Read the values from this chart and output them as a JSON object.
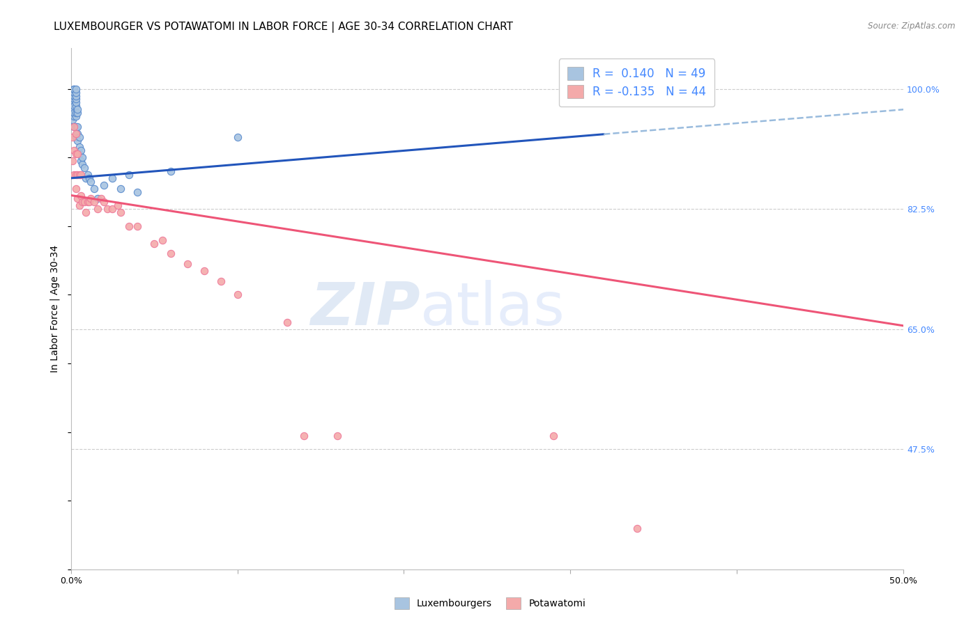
{
  "title": "LUXEMBOURGER VS POTAWATOMI IN LABOR FORCE | AGE 30-34 CORRELATION CHART",
  "source": "Source: ZipAtlas.com",
  "ylabel": "In Labor Force | Age 30-34",
  "xlim": [
    0.0,
    0.5
  ],
  "ylim": [
    0.3,
    1.06
  ],
  "xtick_pos": [
    0.0,
    0.1,
    0.2,
    0.3,
    0.4,
    0.5
  ],
  "xtick_labels": [
    "0.0%",
    "",
    "",
    "",
    "",
    "50.0%"
  ],
  "ytick_pos": [
    0.475,
    0.65,
    0.825,
    1.0
  ],
  "ytick_labels": [
    "47.5%",
    "65.0%",
    "82.5%",
    "100.0%"
  ],
  "watermark_zip": "ZIP",
  "watermark_atlas": "atlas",
  "blue_R": 0.14,
  "blue_N": 49,
  "pink_R": -0.135,
  "pink_N": 44,
  "blue_color": "#A8C4E0",
  "pink_color": "#F4AAAA",
  "blue_edge_color": "#5588CC",
  "pink_edge_color": "#EE7799",
  "blue_line_color": "#2255BB",
  "pink_line_color": "#EE5577",
  "dashed_line_color": "#99BBDD",
  "grid_color": "#CCCCCC",
  "bg_color": "#FFFFFF",
  "right_label_color": "#4488FF",
  "title_fontsize": 11,
  "axis_label_fontsize": 10,
  "tick_fontsize": 9,
  "legend_fontsize": 12,
  "blue_line_intercept": 0.87,
  "blue_line_slope": 0.2,
  "pink_line_intercept": 0.845,
  "pink_line_slope": -0.38,
  "blue_x": [
    0.001,
    0.001,
    0.001,
    0.001,
    0.002,
    0.002,
    0.002,
    0.002,
    0.002,
    0.002,
    0.002,
    0.002,
    0.002,
    0.003,
    0.003,
    0.003,
    0.003,
    0.003,
    0.003,
    0.003,
    0.003,
    0.003,
    0.003,
    0.004,
    0.004,
    0.004,
    0.004,
    0.004,
    0.005,
    0.005,
    0.005,
    0.006,
    0.006,
    0.007,
    0.007,
    0.008,
    0.009,
    0.01,
    0.011,
    0.012,
    0.014,
    0.016,
    0.02,
    0.025,
    0.03,
    0.035,
    0.04,
    0.06,
    0.1
  ],
  "blue_y": [
    0.955,
    0.97,
    0.98,
    0.99,
    0.945,
    0.96,
    0.965,
    0.975,
    0.985,
    0.99,
    0.995,
    1.0,
    1.0,
    0.93,
    0.945,
    0.96,
    0.965,
    0.975,
    0.98,
    0.985,
    0.99,
    0.995,
    1.0,
    0.925,
    0.935,
    0.945,
    0.965,
    0.97,
    0.905,
    0.915,
    0.93,
    0.895,
    0.91,
    0.89,
    0.9,
    0.885,
    0.87,
    0.875,
    0.87,
    0.865,
    0.855,
    0.84,
    0.86,
    0.87,
    0.855,
    0.875,
    0.85,
    0.88,
    0.93
  ],
  "pink_x": [
    0.001,
    0.001,
    0.002,
    0.002,
    0.002,
    0.003,
    0.003,
    0.003,
    0.003,
    0.004,
    0.004,
    0.004,
    0.005,
    0.005,
    0.006,
    0.006,
    0.007,
    0.008,
    0.009,
    0.01,
    0.011,
    0.012,
    0.014,
    0.016,
    0.018,
    0.02,
    0.022,
    0.025,
    0.028,
    0.03,
    0.035,
    0.04,
    0.05,
    0.055,
    0.06,
    0.07,
    0.08,
    0.09,
    0.1,
    0.13,
    0.14,
    0.16,
    0.29,
    0.34
  ],
  "pink_y": [
    0.895,
    0.93,
    0.875,
    0.91,
    0.945,
    0.855,
    0.875,
    0.905,
    0.935,
    0.84,
    0.875,
    0.905,
    0.83,
    0.875,
    0.845,
    0.875,
    0.835,
    0.835,
    0.82,
    0.835,
    0.835,
    0.84,
    0.835,
    0.825,
    0.84,
    0.835,
    0.825,
    0.825,
    0.83,
    0.82,
    0.8,
    0.8,
    0.775,
    0.78,
    0.76,
    0.745,
    0.735,
    0.72,
    0.7,
    0.66,
    0.495,
    0.495,
    0.495,
    0.36
  ]
}
